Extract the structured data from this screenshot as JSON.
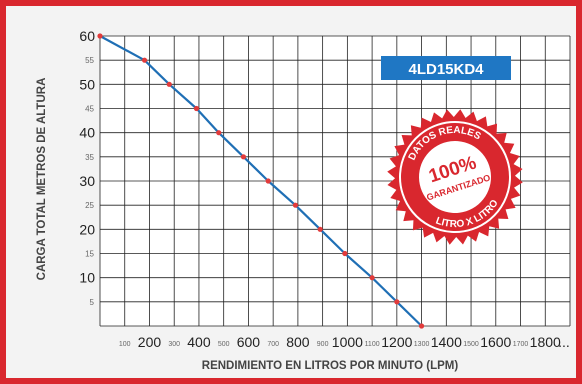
{
  "chart_data": {
    "type": "line",
    "xlabel": "RENDIMIENTO EN LITROS POR MINUTO (LPM)",
    "ylabel": "CARGA TOTAL METROS DE ALTURA",
    "xlim": [
      0,
      1900
    ],
    "ylim": [
      0,
      60
    ],
    "grid": true,
    "x_ticks_major": [
      "200",
      "400",
      "600",
      "800",
      "1000",
      "1200",
      "1400",
      "1600",
      "1800"
    ],
    "x_ticks_minor": [
      "100",
      "300",
      "500",
      "700",
      "900",
      "1100",
      "1300",
      "1500",
      "1700"
    ],
    "x_tick_trailing": "...",
    "y_ticks_major": [
      "10",
      "20",
      "30",
      "40",
      "50",
      "60"
    ],
    "y_ticks_minor": [
      "5",
      "15",
      "25",
      "35",
      "45",
      "55"
    ],
    "series": [
      {
        "name": "4LD15KD4",
        "color": "#1f6fb5",
        "marker_color": "#e23b3b",
        "x": [
          0,
          180,
          280,
          390,
          480,
          580,
          680,
          790,
          890,
          990,
          1100,
          1200,
          1300
        ],
        "y": [
          60,
          55,
          50,
          45,
          40,
          35,
          30,
          25,
          20,
          15,
          10,
          5,
          0
        ]
      }
    ],
    "label_box": {
      "text": "4LD15KD4",
      "color": "#1f77c4"
    }
  },
  "seal": {
    "top_text": "DATOS REALES",
    "main_text": "100%",
    "sub_text": "GARANTIZADO",
    "bottom_text": "LITRO X LITRO",
    "color": "#d9272e"
  },
  "colors": {
    "frame": "#d9272e",
    "plot_bg": "#ffffff",
    "grid": "#222222",
    "line": "#1f6fb5",
    "marker": "#e23b3b"
  }
}
